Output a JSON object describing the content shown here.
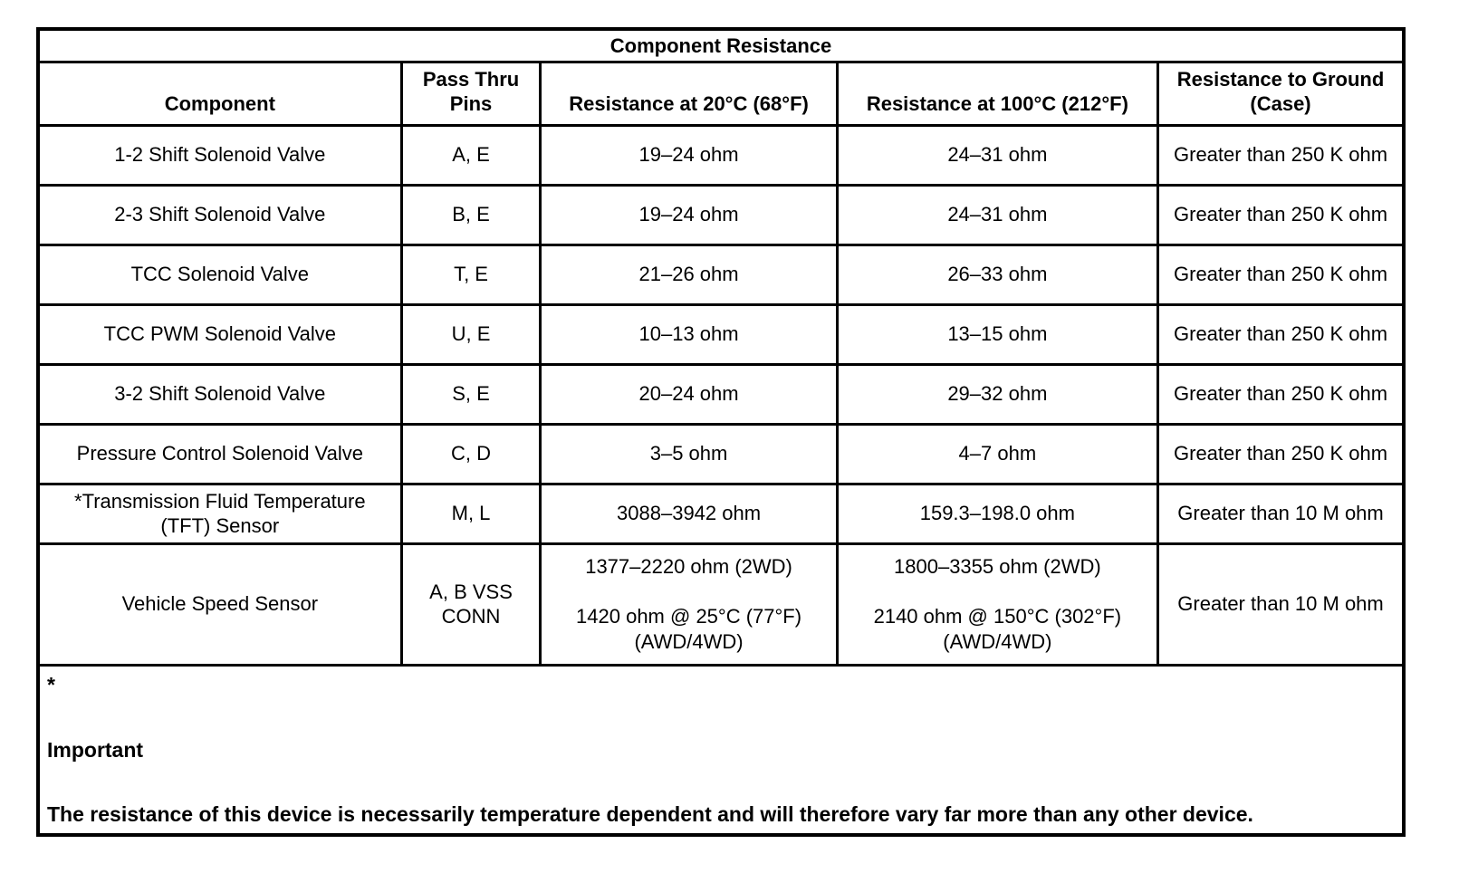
{
  "table": {
    "title": "Component Resistance",
    "columns": {
      "component": "Component",
      "pins": "Pass Thru\nPins",
      "r20": "Resistance at 20°C (68°F)",
      "r100": "Resistance at 100°C (212°F)",
      "ground": "Resistance to Ground\n(Case)"
    },
    "rows": [
      {
        "component": "1-2 Shift Solenoid Valve",
        "pins": "A, E",
        "r20": "19–24 ohm",
        "r100": "24–31 ohm",
        "ground": "Greater than 250 K ohm"
      },
      {
        "component": "2-3 Shift Solenoid Valve",
        "pins": "B, E",
        "r20": "19–24 ohm",
        "r100": "24–31 ohm",
        "ground": "Greater than 250 K ohm"
      },
      {
        "component": "TCC Solenoid Valve",
        "pins": "T, E",
        "r20": "21–26 ohm",
        "r100": "26–33 ohm",
        "ground": "Greater than 250 K ohm"
      },
      {
        "component": "TCC PWM Solenoid Valve",
        "pins": "U, E",
        "r20": "10–13 ohm",
        "r100": "13–15 ohm",
        "ground": "Greater than 250 K ohm"
      },
      {
        "component": "3-2 Shift Solenoid Valve",
        "pins": "S, E",
        "r20": "20–24 ohm",
        "r100": "29–32 ohm",
        "ground": "Greater than 250 K ohm"
      },
      {
        "component": "Pressure Control Solenoid Valve",
        "pins": "C, D",
        "r20": "3–5 ohm",
        "r100": "4–7 ohm",
        "ground": "Greater than 250 K ohm"
      },
      {
        "component": "*Transmission Fluid Temperature (TFT) Sensor",
        "pins": "M, L",
        "r20": "3088–3942 ohm",
        "r100": "159.3–198.0 ohm",
        "ground": "Greater than 10 M ohm"
      },
      {
        "component": "Vehicle Speed Sensor",
        "pins": "A, B VSS\nCONN",
        "r20": "1377–2220 ohm (2WD)\n\n1420 ohm @ 25°C (77°F)\n(AWD/4WD)",
        "r100": "1800–3355 ohm (2WD)\n\n2140 ohm @ 150°C (302°F)\n(AWD/4WD)",
        "ground": "Greater than 10 M ohm"
      }
    ],
    "footnote": {
      "marker": "*",
      "heading": "Important",
      "text": "The resistance of this device is necessarily temperature dependent and will therefore vary far more than any other device."
    }
  }
}
